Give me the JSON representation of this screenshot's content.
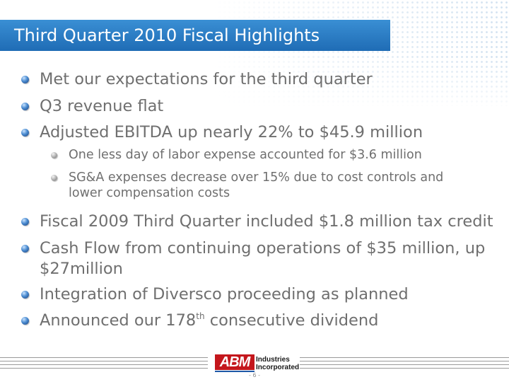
{
  "slide": {
    "title": "Third Quarter 2010 Fiscal Highlights",
    "bullets": {
      "b1": "Met our expectations for the third quarter",
      "b2": "Q3 revenue flat",
      "b3": "Adjusted EBITDA up nearly 22% to $45.9 million",
      "b3_sub1": "One less day of labor expense accounted for $3.6 million",
      "b3_sub2_line1": "SG&A expenses decrease over 15% due to cost controls and",
      "b3_sub2_line2": "lower compensation costs",
      "b4": "Fiscal 2009 Third Quarter included $1.8 million tax credit",
      "b5_line1": "Cash Flow from continuing operations of $35 million, up",
      "b5_line2": "$27million",
      "b6": "Integration of Diversco proceeding as planned",
      "b7_before": "Announced our 178",
      "b7_sup": "th",
      "b7_after": " consecutive dividend"
    }
  },
  "footer": {
    "logo_mark": "ABM",
    "logo_line1": "Industries",
    "logo_line2": "Incorporated",
    "page_number": "- 6 -"
  },
  "colors": {
    "title_bar": "#1f6cb5",
    "body_text": "#6f6f6f",
    "logo_red": "#c4161c"
  }
}
